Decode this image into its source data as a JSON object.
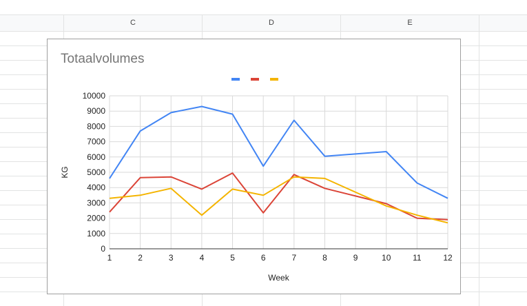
{
  "sheet": {
    "column_headers": [
      "C",
      "D",
      "E"
    ]
  },
  "colors": {
    "series": [
      "#4285f4",
      "#db4437",
      "#f4b400"
    ],
    "grid": "#d9d9d9",
    "axis": "#333333"
  },
  "chart_data": {
    "type": "line",
    "title": "Totaalvolumes",
    "xlabel": "Week",
    "ylabel": "KG",
    "x": [
      1,
      2,
      3,
      4,
      5,
      6,
      7,
      8,
      9,
      10,
      11,
      12
    ],
    "ylim": [
      0,
      10000
    ],
    "yticks": [
      0,
      1000,
      2000,
      3000,
      4000,
      5000,
      6000,
      7000,
      8000,
      9000,
      10000
    ],
    "grid": true,
    "legend": "top",
    "series": [
      {
        "values": [
          4600,
          7700,
          8900,
          9300,
          8800,
          5400,
          8400,
          6050,
          6200,
          6350,
          4300,
          3300
        ]
      },
      {
        "values": [
          2400,
          4650,
          4700,
          3900,
          4950,
          2350,
          4850,
          3950,
          3450,
          2950,
          2000,
          1900
        ]
      },
      {
        "values": [
          3300,
          3500,
          3950,
          2200,
          3900,
          3500,
          4700,
          4600,
          3700,
          2800,
          2200,
          1700
        ]
      }
    ]
  }
}
